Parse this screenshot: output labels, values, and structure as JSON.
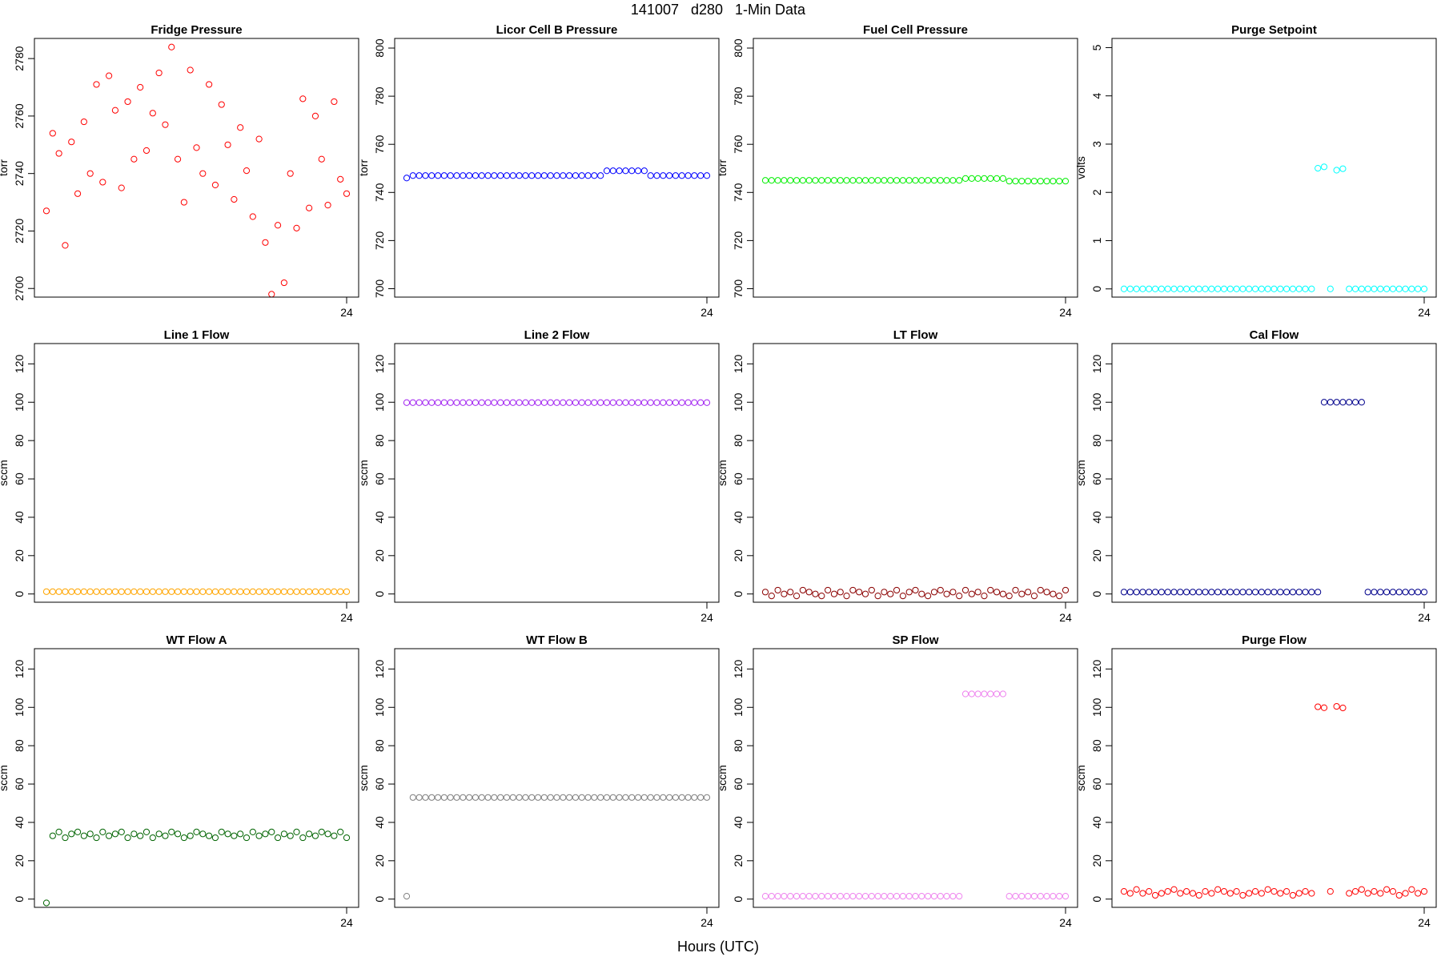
{
  "title": "141007   d280   1-Min Data",
  "xlabel": "Hours (UTC)",
  "chart_data": [
    {
      "type": "scatter",
      "title": "Fridge Pressure",
      "ylabel": "torr",
      "color": "#ff0000",
      "x": [
        0,
        0.5,
        1,
        1.5,
        2,
        2.5,
        3,
        3.5,
        4,
        4.5,
        5,
        5.5,
        6,
        6.5,
        7,
        7.5,
        8,
        8.5,
        9,
        9.5,
        10,
        10.5,
        11,
        11.5,
        12,
        12.5,
        13,
        13.5,
        14,
        14.5,
        15,
        15.5,
        16,
        16.5,
        17,
        17.5,
        18,
        18.5,
        19,
        19.5,
        20,
        20.5,
        21,
        21.5,
        22,
        22.5,
        23,
        23.5,
        24
      ],
      "values": [
        2727,
        2754,
        2747,
        2715,
        2751,
        2733,
        2758,
        2740,
        2771,
        2737,
        2774,
        2762,
        2735,
        2765,
        2745,
        2770,
        2748,
        2761,
        2775,
        2757,
        2784,
        2745,
        2730,
        2776,
        2749,
        2740,
        2771,
        2736,
        2764,
        2750,
        2731,
        2756,
        2741,
        2725,
        2752,
        2716,
        2698,
        2722,
        2702,
        2740,
        2721,
        2766,
        2728,
        2760,
        2745,
        2729,
        2765,
        2738,
        2733
      ],
      "xlim": [
        -0.96,
        24.96
      ],
      "xticks": [
        24
      ],
      "ylim": [
        2697,
        2787
      ],
      "yticks": [
        2700,
        2720,
        2740,
        2760,
        2780
      ]
    },
    {
      "type": "scatter",
      "title": "Licor Cell B Pressure",
      "ylabel": "torr",
      "color": "#0000ff",
      "x": [
        0,
        0.5,
        1,
        1.5,
        2,
        2.5,
        3,
        3.5,
        4,
        4.5,
        5,
        5.5,
        6,
        6.5,
        7,
        7.5,
        8,
        8.5,
        9,
        9.5,
        10,
        10.5,
        11,
        11.5,
        12,
        12.5,
        13,
        13.5,
        14,
        14.5,
        15,
        15.5,
        16,
        16.5,
        17,
        17.5,
        18,
        18.5,
        19,
        19.5,
        20,
        20.5,
        21,
        21.5,
        22,
        22.5,
        23,
        23.5,
        24
      ],
      "values": [
        746,
        747,
        747,
        747,
        747,
        747,
        747,
        747,
        747,
        747,
        747,
        747,
        747,
        747,
        747,
        747,
        747,
        747,
        747,
        747,
        747,
        747,
        747,
        747,
        747,
        747,
        747,
        747,
        747,
        747,
        747,
        747,
        749,
        749,
        749,
        749,
        749,
        749,
        749,
        747,
        747,
        747,
        747,
        747,
        747,
        747,
        747,
        747,
        747
      ],
      "xlim": [
        -0.96,
        24.96
      ],
      "xticks": [
        24
      ],
      "ylim": [
        696.5,
        804
      ],
      "yticks": [
        700,
        720,
        740,
        760,
        780,
        800
      ]
    },
    {
      "type": "scatter",
      "title": "Fuel Cell Pressure",
      "ylabel": "torr",
      "color": "#00ee00",
      "x": [
        0,
        0.5,
        1,
        1.5,
        2,
        2.5,
        3,
        3.5,
        4,
        4.5,
        5,
        5.5,
        6,
        6.5,
        7,
        7.5,
        8,
        8.5,
        9,
        9.5,
        10,
        10.5,
        11,
        11.5,
        12,
        12.5,
        13,
        13.5,
        14,
        14.5,
        15,
        15.5,
        16,
        16.5,
        17,
        17.5,
        18,
        18.5,
        19,
        19.5,
        20,
        20.5,
        21,
        21.5,
        22,
        22.5,
        23,
        23.5,
        24
      ],
      "values": [
        745,
        745,
        745,
        745,
        745,
        745,
        745,
        745,
        745,
        745,
        745,
        745,
        745,
        745,
        745,
        745,
        745,
        745,
        745,
        745,
        745,
        745,
        745,
        745,
        745,
        745,
        745,
        745,
        745,
        745,
        745,
        745,
        745.8,
        745.8,
        745.8,
        745.8,
        745.8,
        745.8,
        745.8,
        744.7,
        744.7,
        744.7,
        744.7,
        744.7,
        744.7,
        744.7,
        744.7,
        744.7,
        744.7
      ],
      "xlim": [
        -0.96,
        24.96
      ],
      "xticks": [
        24
      ],
      "ylim": [
        696.5,
        804
      ],
      "yticks": [
        700,
        720,
        740,
        760,
        780,
        800
      ]
    },
    {
      "type": "scatter",
      "title": "Purge Setpoint",
      "ylabel": "volts",
      "color": "#00ffff",
      "x": [
        0,
        0.5,
        1,
        1.5,
        2,
        2.5,
        3,
        3.5,
        4,
        4.5,
        5,
        5.5,
        6,
        6.5,
        7,
        7.5,
        8,
        8.5,
        9,
        9.5,
        10,
        10.5,
        11,
        11.5,
        12,
        12.5,
        13,
        13.5,
        14,
        14.5,
        15,
        15.5,
        16,
        16.5,
        17,
        17.5,
        18,
        18.5,
        19,
        19.5,
        20,
        20.5,
        21,
        21.5,
        22,
        22.5,
        23,
        23.5,
        24
      ],
      "values": [
        0,
        0,
        0,
        0,
        0,
        0,
        0,
        0,
        0,
        0,
        0,
        0,
        0,
        0,
        0,
        0,
        0,
        0,
        0,
        0,
        0,
        0,
        0,
        0,
        0,
        0,
        0,
        0,
        0,
        0,
        0,
        2.5,
        2.53,
        0,
        2.46,
        2.49,
        0,
        0,
        0,
        0,
        0,
        0,
        0,
        0,
        0,
        0,
        0,
        0,
        0
      ],
      "xlim": [
        -0.96,
        24.96
      ],
      "xticks": [
        24
      ],
      "ylim": [
        -0.17,
        5.19
      ],
      "yticks": [
        0,
        1,
        2,
        3,
        4,
        5
      ]
    },
    {
      "type": "scatter",
      "title": "Line 1 Flow",
      "ylabel": "sccm",
      "color": "#ffa500",
      "x": [
        0,
        0.5,
        1,
        1.5,
        2,
        2.5,
        3,
        3.5,
        4,
        4.5,
        5,
        5.5,
        6,
        6.5,
        7,
        7.5,
        8,
        8.5,
        9,
        9.5,
        10,
        10.5,
        11,
        11.5,
        12,
        12.5,
        13,
        13.5,
        14,
        14.5,
        15,
        15.5,
        16,
        16.5,
        17,
        17.5,
        18,
        18.5,
        19,
        19.5,
        20,
        20.5,
        21,
        21.5,
        22,
        22.5,
        23,
        23.5,
        24
      ],
      "values": [
        1.2,
        1.2,
        1.2,
        1.2,
        1.2,
        1.2,
        1.2,
        1.2,
        1.2,
        1.2,
        1.2,
        1.2,
        1.2,
        1.2,
        1.2,
        1.2,
        1.2,
        1.2,
        1.2,
        1.2,
        1.2,
        1.2,
        1.2,
        1.2,
        1.2,
        1.2,
        1.2,
        1.2,
        1.2,
        1.2,
        1.2,
        1.2,
        1.2,
        1.2,
        1.2,
        1.2,
        1.2,
        1.2,
        1.2,
        1.2,
        1.2,
        1.2,
        1.2,
        1.2,
        1.2,
        1.2,
        1.2,
        1.2,
        1.2
      ],
      "xlim": [
        -0.96,
        24.96
      ],
      "xticks": [
        24
      ],
      "ylim": [
        -4.3,
        130.6
      ],
      "yticks": [
        0,
        20,
        40,
        60,
        80,
        100,
        120
      ]
    },
    {
      "type": "scatter",
      "title": "Line 2 Flow",
      "ylabel": "sccm",
      "color": "#a020f0",
      "x": [
        0,
        0.5,
        1,
        1.5,
        2,
        2.5,
        3,
        3.5,
        4,
        4.5,
        5,
        5.5,
        6,
        6.5,
        7,
        7.5,
        8,
        8.5,
        9,
        9.5,
        10,
        10.5,
        11,
        11.5,
        12,
        12.5,
        13,
        13.5,
        14,
        14.5,
        15,
        15.5,
        16,
        16.5,
        17,
        17.5,
        18,
        18.5,
        19,
        19.5,
        20,
        20.5,
        21,
        21.5,
        22,
        22.5,
        23,
        23.5,
        24
      ],
      "values": [
        99.8,
        99.8,
        99.8,
        99.8,
        99.8,
        99.8,
        99.8,
        99.8,
        99.8,
        99.8,
        99.8,
        99.8,
        99.8,
        99.8,
        99.8,
        99.8,
        99.8,
        99.8,
        99.8,
        99.8,
        99.8,
        99.8,
        99.8,
        99.8,
        99.8,
        99.8,
        99.8,
        99.8,
        99.8,
        99.8,
        99.8,
        99.8,
        99.8,
        99.8,
        99.8,
        99.8,
        99.8,
        99.8,
        99.8,
        99.8,
        99.8,
        99.8,
        99.8,
        99.8,
        99.8,
        99.8,
        99.8,
        99.8,
        99.8
      ],
      "xlim": [
        -0.96,
        24.96
      ],
      "xticks": [
        24
      ],
      "ylim": [
        -4.3,
        130.6
      ],
      "yticks": [
        0,
        20,
        40,
        60,
        80,
        100,
        120
      ]
    },
    {
      "type": "scatter",
      "title": "LT Flow",
      "ylabel": "sccm",
      "color": "#8b0000",
      "x": [
        0,
        0.5,
        1,
        1.5,
        2,
        2.5,
        3,
        3.5,
        4,
        4.5,
        5,
        5.5,
        6,
        6.5,
        7,
        7.5,
        8,
        8.5,
        9,
        9.5,
        10,
        10.5,
        11,
        11.5,
        12,
        12.5,
        13,
        13.5,
        14,
        14.5,
        15,
        15.5,
        16,
        16.5,
        17,
        17.5,
        18,
        18.5,
        19,
        19.5,
        20,
        20.5,
        21,
        21.5,
        22,
        22.5,
        23,
        23.5,
        24
      ],
      "values": [
        1,
        -1,
        2,
        0,
        1,
        -1,
        2,
        1,
        0,
        -1,
        2,
        0,
        1,
        -1,
        2,
        1,
        0,
        2,
        -1,
        1,
        0,
        2,
        -1,
        1,
        2,
        0,
        -1,
        1,
        2,
        0,
        1,
        -1,
        2,
        0,
        1,
        -1,
        2,
        1,
        0,
        -1,
        2,
        0,
        1,
        -1,
        2,
        1,
        0,
        -1,
        2
      ],
      "xlim": [
        -0.96,
        24.96
      ],
      "xticks": [
        24
      ],
      "ylim": [
        -4.3,
        130.6
      ],
      "yticks": [
        0,
        20,
        40,
        60,
        80,
        100,
        120
      ]
    },
    {
      "type": "scatter",
      "title": "Cal Flow",
      "ylabel": "sccm",
      "color": "#00008b",
      "x": [
        0,
        0.5,
        1,
        1.5,
        2,
        2.5,
        3,
        3.5,
        4,
        4.5,
        5,
        5.5,
        6,
        6.5,
        7,
        7.5,
        8,
        8.5,
        9,
        9.5,
        10,
        10.5,
        11,
        11.5,
        12,
        12.5,
        13,
        13.5,
        14,
        14.5,
        15,
        15.5,
        16,
        16.5,
        17,
        17.5,
        18,
        18.5,
        19,
        19.5,
        20,
        20.5,
        21,
        21.5,
        22,
        22.5,
        23,
        23.5,
        24
      ],
      "values": [
        1,
        1,
        1,
        1,
        1,
        1,
        1,
        1,
        1,
        1,
        1,
        1,
        1,
        1,
        1,
        1,
        1,
        1,
        1,
        1,
        1,
        1,
        1,
        1,
        1,
        1,
        1,
        1,
        1,
        1,
        1,
        1,
        100,
        100,
        100,
        100,
        100,
        100,
        100,
        1,
        1,
        1,
        1,
        1,
        1,
        1,
        1,
        1,
        1
      ],
      "xlim": [
        -0.96,
        24.96
      ],
      "xticks": [
        24
      ],
      "ylim": [
        -4.3,
        130.6
      ],
      "yticks": [
        0,
        20,
        40,
        60,
        80,
        100,
        120
      ]
    },
    {
      "type": "scatter",
      "title": "WT Flow A",
      "ylabel": "sccm",
      "color": "#006400",
      "x": [
        0,
        0.5,
        1,
        1.5,
        2,
        2.5,
        3,
        3.5,
        4,
        4.5,
        5,
        5.5,
        6,
        6.5,
        7,
        7.5,
        8,
        8.5,
        9,
        9.5,
        10,
        10.5,
        11,
        11.5,
        12,
        12.5,
        13,
        13.5,
        14,
        14.5,
        15,
        15.5,
        16,
        16.5,
        17,
        17.5,
        18,
        18.5,
        19,
        19.5,
        20,
        20.5,
        21,
        21.5,
        22,
        22.5,
        23,
        23.5,
        24
      ],
      "values": [
        -2,
        33,
        35,
        32,
        34,
        35,
        33,
        34,
        32,
        35,
        33,
        34,
        35,
        32,
        34,
        33,
        35,
        32,
        34,
        33,
        35,
        34,
        32,
        33,
        35,
        34,
        33,
        32,
        35,
        34,
        33,
        34,
        32,
        35,
        33,
        34,
        35,
        32,
        34,
        33,
        35,
        32,
        34,
        33,
        35,
        34,
        33,
        35,
        32
      ],
      "xlim": [
        -0.96,
        24.96
      ],
      "xticks": [
        24
      ],
      "ylim": [
        -4.3,
        130.6
      ],
      "yticks": [
        0,
        20,
        40,
        60,
        80,
        100,
        120
      ]
    },
    {
      "type": "scatter",
      "title": "WT Flow B",
      "ylabel": "sccm",
      "color": "#808080",
      "x": [
        0,
        0.5,
        1,
        1.5,
        2,
        2.5,
        3,
        3.5,
        4,
        4.5,
        5,
        5.5,
        6,
        6.5,
        7,
        7.5,
        8,
        8.5,
        9,
        9.5,
        10,
        10.5,
        11,
        11.5,
        12,
        12.5,
        13,
        13.5,
        14,
        14.5,
        15,
        15.5,
        16,
        16.5,
        17,
        17.5,
        18,
        18.5,
        19,
        19.5,
        20,
        20.5,
        21,
        21.5,
        22,
        22.5,
        23,
        23.5,
        24
      ],
      "values": [
        1.5,
        53,
        53,
        53,
        53,
        53,
        53,
        53,
        53,
        53,
        53,
        53,
        53,
        53,
        53,
        53,
        53,
        53,
        53,
        53,
        53,
        53,
        53,
        53,
        53,
        53,
        53,
        53,
        53,
        53,
        53,
        53,
        53,
        53,
        53,
        53,
        53,
        53,
        53,
        53,
        53,
        53,
        53,
        53,
        53,
        53,
        53,
        53,
        53
      ],
      "xlim": [
        -0.96,
        24.96
      ],
      "xticks": [
        24
      ],
      "ylim": [
        -4.3,
        130.6
      ],
      "yticks": [
        0,
        20,
        40,
        60,
        80,
        100,
        120
      ]
    },
    {
      "type": "scatter",
      "title": "SP Flow",
      "ylabel": "sccm",
      "color": "#ee82ee",
      "x": [
        0,
        0.5,
        1,
        1.5,
        2,
        2.5,
        3,
        3.5,
        4,
        4.5,
        5,
        5.5,
        6,
        6.5,
        7,
        7.5,
        8,
        8.5,
        9,
        9.5,
        10,
        10.5,
        11,
        11.5,
        12,
        12.5,
        13,
        13.5,
        14,
        14.5,
        15,
        15.5,
        16,
        16.5,
        17,
        17.5,
        18,
        18.5,
        19,
        19.5,
        20,
        20.5,
        21,
        21.5,
        22,
        22.5,
        23,
        23.5,
        24
      ],
      "values": [
        1.5,
        1.5,
        1.5,
        1.5,
        1.5,
        1.5,
        1.5,
        1.5,
        1.5,
        1.5,
        1.5,
        1.5,
        1.5,
        1.5,
        1.5,
        1.5,
        1.5,
        1.5,
        1.5,
        1.5,
        1.5,
        1.5,
        1.5,
        1.5,
        1.5,
        1.5,
        1.5,
        1.5,
        1.5,
        1.5,
        1.5,
        1.5,
        107,
        107,
        107,
        107,
        107,
        107,
        107,
        1.5,
        1.5,
        1.5,
        1.5,
        1.5,
        1.5,
        1.5,
        1.5,
        1.5,
        1.5
      ],
      "xlim": [
        -0.96,
        24.96
      ],
      "xticks": [
        24
      ],
      "ylim": [
        -4.3,
        130.6
      ],
      "yticks": [
        0,
        20,
        40,
        60,
        80,
        100,
        120
      ]
    },
    {
      "type": "scatter",
      "title": "Purge Flow",
      "ylabel": "sccm",
      "color": "#ff0000",
      "x": [
        0,
        0.5,
        1,
        1.5,
        2,
        2.5,
        3,
        3.5,
        4,
        4.5,
        5,
        5.5,
        6,
        6.5,
        7,
        7.5,
        8,
        8.5,
        9,
        9.5,
        10,
        10.5,
        11,
        11.5,
        12,
        12.5,
        13,
        13.5,
        14,
        14.5,
        15,
        15.5,
        16,
        16.5,
        17,
        17.5,
        18,
        18.5,
        19,
        19.5,
        20,
        20.5,
        21,
        21.5,
        22,
        22.5,
        23,
        23.5,
        24
      ],
      "values": [
        4,
        3,
        5,
        3,
        4,
        2,
        3,
        4,
        5,
        3,
        4,
        3,
        2,
        4,
        3,
        5,
        4,
        3,
        4,
        2,
        3,
        4,
        3,
        5,
        4,
        3,
        4,
        2,
        3,
        4,
        3,
        100.3,
        99.8,
        4,
        100.5,
        99.7,
        3,
        4,
        5,
        3,
        4,
        3,
        5,
        4,
        2,
        3,
        5,
        3,
        4
      ],
      "xlim": [
        -0.96,
        24.96
      ],
      "xticks": [
        24
      ],
      "ylim": [
        -4.3,
        130.6
      ],
      "yticks": [
        0,
        20,
        40,
        60,
        80,
        100,
        120
      ]
    }
  ]
}
